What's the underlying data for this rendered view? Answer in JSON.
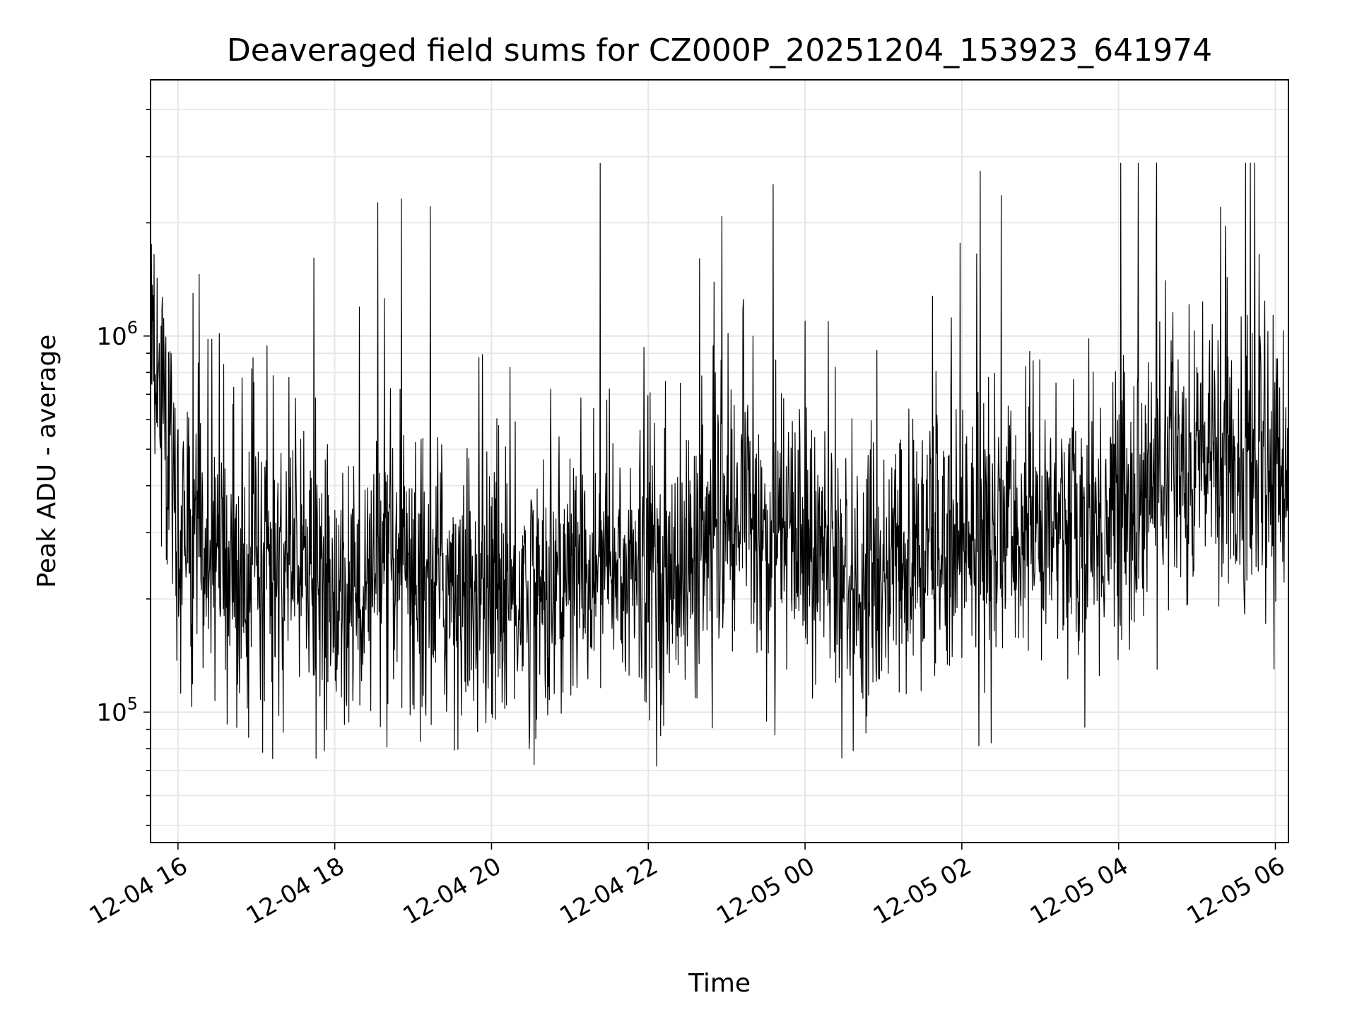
{
  "chart_data": {
    "type": "line",
    "title": "Deaveraged field sums for CZ000P_20251204_153923_641974",
    "xlabel": "Time",
    "ylabel": "Peak ADU - average",
    "yscale": "log",
    "xlim": [
      "2025-12-04 15:39",
      "2025-12-05 06:10"
    ],
    "ylim": [
      45000,
      4800000
    ],
    "grid": true,
    "line_color": "#000000",
    "x_ticks": [
      {
        "value": "2025-12-04 16:00",
        "label": "12-04 16"
      },
      {
        "value": "2025-12-04 18:00",
        "label": "12-04 18"
      },
      {
        "value": "2025-12-04 20:00",
        "label": "12-04 20"
      },
      {
        "value": "2025-12-04 22:00",
        "label": "12-04 22"
      },
      {
        "value": "2025-12-05 00:00",
        "label": "12-05 00"
      },
      {
        "value": "2025-12-05 02:00",
        "label": "12-05 02"
      },
      {
        "value": "2025-12-05 04:00",
        "label": "12-05 04"
      },
      {
        "value": "2025-12-05 06:00",
        "label": "12-05 06"
      }
    ],
    "y_ticks": [
      {
        "value": 100000,
        "base": "10",
        "exp": "5"
      },
      {
        "value": 1000000,
        "base": "10",
        "exp": "6"
      }
    ],
    "series": [
      {
        "x": [
          "2025-12-04 15:39",
          "2025-12-04 15:45",
          "2025-12-04 16:00",
          "2025-12-04 16:30",
          "2025-12-04 17:00",
          "2025-12-04 17:30",
          "2025-12-04 18:00",
          "2025-12-04 18:30",
          "2025-12-04 19:00",
          "2025-12-04 19:30",
          "2025-12-04 20:00",
          "2025-12-04 20:30",
          "2025-12-04 21:00",
          "2025-12-04 21:30",
          "2025-12-04 22:00",
          "2025-12-04 22:30",
          "2025-12-04 23:00",
          "2025-12-04 23:30",
          "2025-12-05 00:00",
          "2025-12-05 00:30",
          "2025-12-05 01:00",
          "2025-12-05 01:30",
          "2025-12-05 02:00",
          "2025-12-05 02:30",
          "2025-12-05 03:00",
          "2025-12-05 03:30",
          "2025-12-05 04:00",
          "2025-12-05 04:30",
          "2025-12-05 05:00",
          "2025-12-05 05:30",
          "2025-12-05 06:00",
          "2025-12-05 06:10"
        ],
        "y": [
          1200000,
          600000,
          300000,
          250000,
          240000,
          220000,
          200000,
          210000,
          230000,
          220000,
          200000,
          210000,
          230000,
          240000,
          230000,
          240000,
          300000,
          310000,
          280000,
          220000,
          230000,
          260000,
          300000,
          280000,
          320000,
          300000,
          320000,
          420000,
          480000,
          450000,
          420000,
          500000
        ]
      }
    ]
  }
}
